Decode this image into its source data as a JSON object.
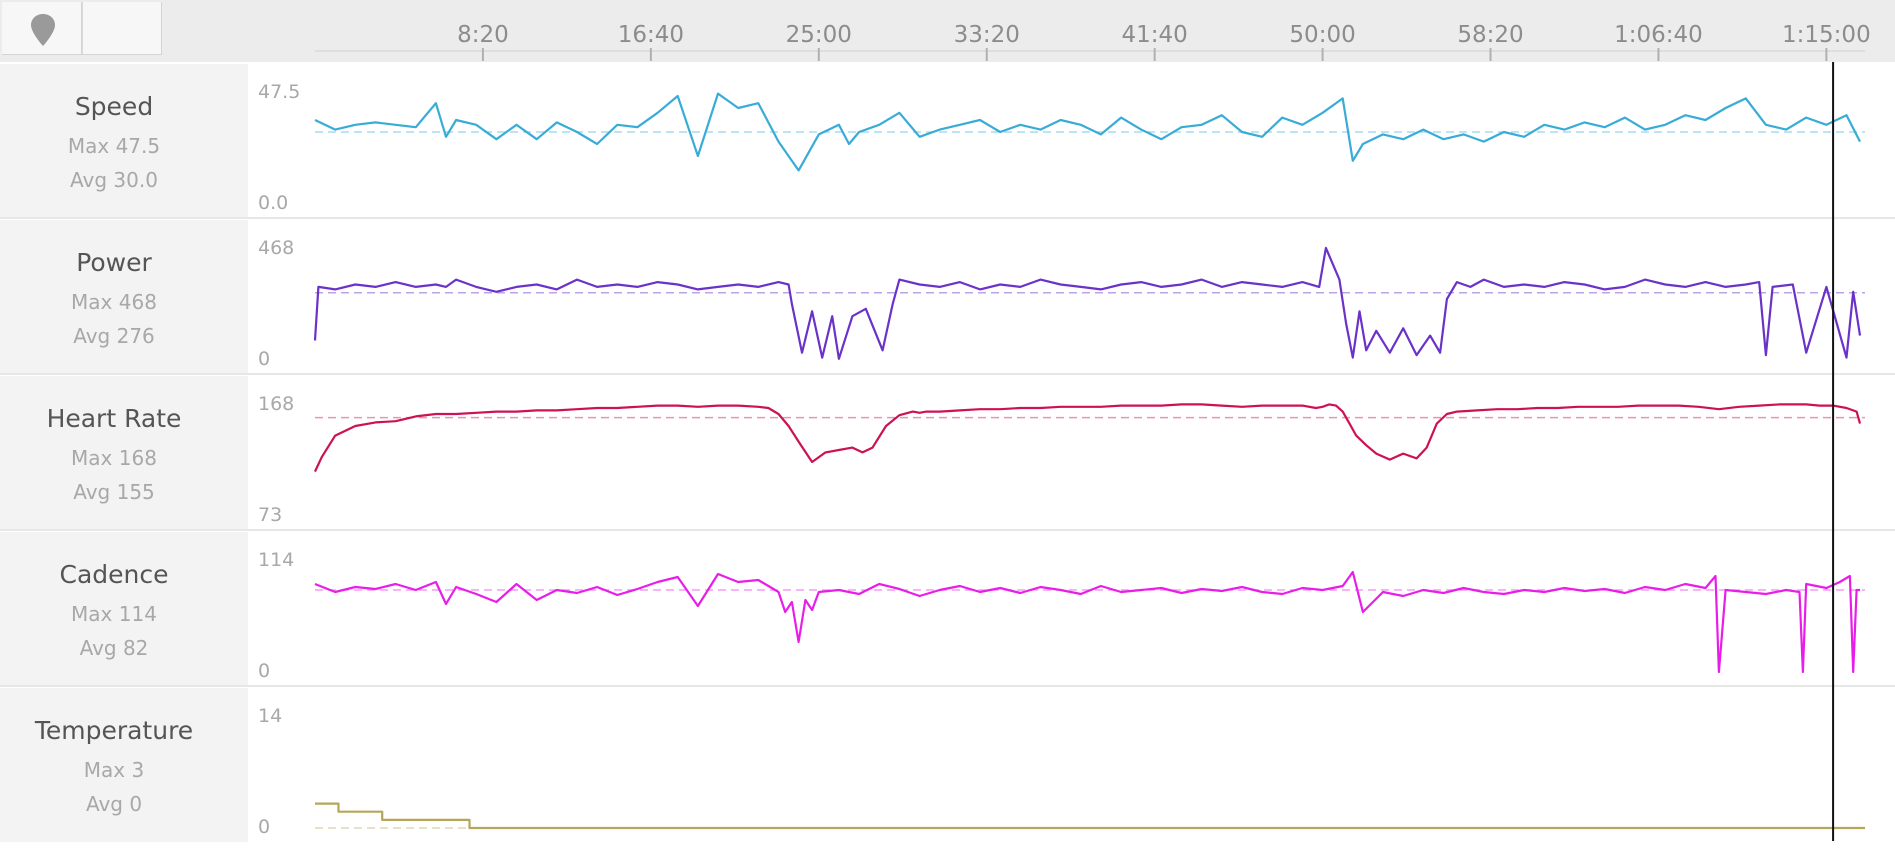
{
  "toolbar": {
    "pin_icon": "map-pin-icon"
  },
  "time_axis": {
    "ticks": [
      "8:20",
      "16:40",
      "25:00",
      "33:20",
      "41:40",
      "50:00",
      "58:20",
      "1:06:40",
      "1:15:00"
    ],
    "tick_seconds": [
      500,
      1000,
      1500,
      2000,
      2500,
      3000,
      3500,
      4000,
      4500
    ],
    "start_seconds": 0,
    "end_seconds": 4615,
    "cursor_seconds": 4520
  },
  "panels": [
    {
      "name": "Speed",
      "max_label": "Max 47.5",
      "avg_label": "Avg 30.0"
    },
    {
      "name": "Power",
      "max_label": "Max 468",
      "avg_label": "Avg 276"
    },
    {
      "name": "Heart Rate",
      "max_label": "Max 168",
      "avg_label": "Avg 155"
    },
    {
      "name": "Cadence",
      "max_label": "Max 114",
      "avg_label": "Avg 82"
    },
    {
      "name": "Temperature",
      "max_label": "Max 3",
      "avg_label": "Avg 0"
    }
  ],
  "chart_data": [
    {
      "type": "line",
      "series": [
        {
          "name": "Speed",
          "color": "#38acd6",
          "avg": 30.0,
          "x": [
            0,
            60,
            120,
            180,
            240,
            300,
            360,
            390,
            420,
            480,
            540,
            600,
            660,
            720,
            780,
            840,
            900,
            960,
            1020,
            1080,
            1140,
            1200,
            1260,
            1320,
            1380,
            1440,
            1500,
            1560,
            1590,
            1620,
            1680,
            1740,
            1800,
            1860,
            1920,
            1980,
            2040,
            2100,
            2160,
            2220,
            2280,
            2340,
            2400,
            2460,
            2520,
            2580,
            2640,
            2700,
            2760,
            2820,
            2880,
            2940,
            3000,
            3060,
            3090,
            3120,
            3180,
            3240,
            3300,
            3360,
            3420,
            3480,
            3540,
            3600,
            3660,
            3720,
            3780,
            3840,
            3900,
            3960,
            4020,
            4080,
            4140,
            4200,
            4260,
            4320,
            4380,
            4440,
            4500,
            4560,
            4600
          ],
          "y": [
            35,
            31,
            33,
            34,
            33,
            32,
            42,
            28,
            35,
            33,
            27,
            33,
            27,
            34,
            30,
            25,
            33,
            32,
            38,
            45,
            20,
            46,
            40,
            42,
            26,
            14,
            29,
            33,
            25,
            30,
            33,
            38,
            28,
            31,
            33,
            35,
            30,
            33,
            31,
            35,
            33,
            29,
            36,
            31,
            27,
            32,
            33,
            37,
            30,
            28,
            36,
            33,
            38,
            44,
            18,
            25,
            29,
            27,
            31,
            27,
            29,
            26,
            30,
            28,
            33,
            31,
            34,
            32,
            36,
            31,
            33,
            37,
            35,
            40,
            44,
            33,
            31,
            36,
            33,
            37,
            26
          ]
        }
      ],
      "ylim": [
        0,
        47.5
      ],
      "ytick_labels": [
        "47.5",
        "0.0"
      ]
    },
    {
      "type": "line",
      "series": [
        {
          "name": "Power",
          "color": "#6a32c8",
          "avg": 276,
          "x": [
            0,
            10,
            60,
            120,
            180,
            240,
            300,
            360,
            390,
            420,
            480,
            540,
            600,
            660,
            720,
            780,
            840,
            900,
            960,
            1020,
            1080,
            1140,
            1200,
            1260,
            1320,
            1380,
            1410,
            1420,
            1450,
            1480,
            1510,
            1540,
            1560,
            1600,
            1640,
            1690,
            1720,
            1740,
            1800,
            1860,
            1920,
            1980,
            2040,
            2100,
            2160,
            2220,
            2280,
            2340,
            2400,
            2460,
            2520,
            2580,
            2640,
            2700,
            2760,
            2820,
            2880,
            2940,
            2990,
            3010,
            3050,
            3070,
            3090,
            3110,
            3130,
            3160,
            3200,
            3240,
            3280,
            3320,
            3350,
            3370,
            3400,
            3420,
            3440,
            3480,
            3540,
            3600,
            3660,
            3720,
            3780,
            3840,
            3900,
            3960,
            4020,
            4080,
            4140,
            4200,
            4260,
            4300,
            4320,
            4340,
            4400,
            4440,
            4500,
            4560,
            4580,
            4600
          ],
          "y": [
            80,
            300,
            290,
            310,
            300,
            320,
            300,
            310,
            300,
            330,
            300,
            280,
            300,
            310,
            290,
            330,
            300,
            310,
            300,
            320,
            310,
            290,
            300,
            310,
            300,
            320,
            310,
            230,
            30,
            200,
            10,
            180,
            5,
            180,
            210,
            40,
            230,
            330,
            310,
            300,
            320,
            290,
            310,
            300,
            330,
            310,
            300,
            290,
            310,
            320,
            300,
            310,
            330,
            300,
            320,
            310,
            300,
            320,
            300,
            460,
            330,
            150,
            10,
            200,
            40,
            120,
            30,
            130,
            20,
            100,
            30,
            250,
            320,
            310,
            300,
            330,
            300,
            310,
            300,
            320,
            310,
            290,
            300,
            330,
            310,
            300,
            320,
            300,
            310,
            320,
            20,
            300,
            310,
            30,
            300,
            10,
            280,
            100
          ]
        }
      ],
      "ylim": [
        0,
        468
      ],
      "ytick_labels": [
        "468",
        "0"
      ]
    },
    {
      "type": "line",
      "series": [
        {
          "name": "Heart Rate",
          "color": "#cc1155",
          "avg": 155,
          "x": [
            0,
            20,
            60,
            120,
            180,
            240,
            300,
            360,
            420,
            480,
            540,
            600,
            660,
            720,
            780,
            840,
            900,
            960,
            1020,
            1080,
            1140,
            1200,
            1260,
            1320,
            1350,
            1380,
            1410,
            1440,
            1480,
            1520,
            1560,
            1600,
            1630,
            1660,
            1700,
            1740,
            1780,
            1800,
            1820,
            1860,
            1920,
            1980,
            2040,
            2100,
            2160,
            2220,
            2280,
            2340,
            2400,
            2460,
            2520,
            2580,
            2640,
            2700,
            2760,
            2820,
            2880,
            2940,
            2980,
            3000,
            3020,
            3040,
            3060,
            3080,
            3100,
            3130,
            3160,
            3200,
            3240,
            3280,
            3310,
            3340,
            3370,
            3400,
            3460,
            3520,
            3580,
            3640,
            3700,
            3760,
            3820,
            3880,
            3940,
            4000,
            4060,
            4120,
            4180,
            4240,
            4300,
            4360,
            4400,
            4440,
            4480,
            4520,
            4560,
            4590,
            4600
          ],
          "y": [
            110,
            122,
            140,
            148,
            151,
            152,
            156,
            158,
            158,
            159,
            160,
            160,
            161,
            161,
            162,
            163,
            163,
            164,
            165,
            165,
            164,
            165,
            165,
            164,
            163,
            158,
            148,
            135,
            118,
            126,
            128,
            130,
            126,
            130,
            148,
            157,
            160,
            159,
            160,
            160,
            161,
            162,
            162,
            163,
            163,
            164,
            164,
            164,
            165,
            165,
            165,
            166,
            166,
            165,
            164,
            165,
            165,
            165,
            163,
            164,
            166,
            165,
            160,
            150,
            140,
            132,
            125,
            120,
            125,
            121,
            130,
            150,
            158,
            160,
            161,
            162,
            162,
            163,
            163,
            164,
            164,
            164,
            165,
            165,
            165,
            164,
            162,
            164,
            165,
            166,
            166,
            166,
            165,
            165,
            163,
            160,
            150
          ]
        }
      ],
      "ylim": [
        73,
        168
      ],
      "ytick_labels": [
        "168",
        "73"
      ]
    },
    {
      "type": "line",
      "series": [
        {
          "name": "Cadence",
          "color": "#e81ee8",
          "avg": 82,
          "x": [
            0,
            60,
            120,
            180,
            240,
            300,
            360,
            390,
            420,
            480,
            540,
            600,
            660,
            720,
            780,
            840,
            900,
            960,
            1020,
            1080,
            1140,
            1200,
            1260,
            1320,
            1380,
            1400,
            1420,
            1440,
            1460,
            1480,
            1500,
            1560,
            1620,
            1680,
            1740,
            1800,
            1860,
            1920,
            1980,
            2040,
            2100,
            2160,
            2220,
            2280,
            2340,
            2400,
            2460,
            2520,
            2580,
            2640,
            2700,
            2760,
            2820,
            2880,
            2940,
            3000,
            3060,
            3090,
            3120,
            3180,
            3240,
            3300,
            3360,
            3420,
            3480,
            3540,
            3600,
            3660,
            3720,
            3780,
            3840,
            3900,
            3960,
            4020,
            4080,
            4140,
            4170,
            4180,
            4200,
            4260,
            4320,
            4380,
            4420,
            4430,
            4440,
            4500,
            4540,
            4570,
            4580,
            4590,
            4600
          ],
          "y": [
            88,
            80,
            85,
            83,
            88,
            82,
            90,
            68,
            85,
            78,
            70,
            88,
            72,
            82,
            79,
            85,
            77,
            83,
            90,
            95,
            66,
            98,
            90,
            92,
            80,
            60,
            70,
            30,
            72,
            62,
            80,
            82,
            78,
            88,
            83,
            76,
            82,
            86,
            80,
            84,
            79,
            85,
            82,
            78,
            86,
            80,
            82,
            84,
            79,
            83,
            81,
            85,
            80,
            78,
            84,
            82,
            86,
            100,
            60,
            80,
            76,
            82,
            79,
            84,
            80,
            78,
            82,
            80,
            84,
            81,
            83,
            79,
            85,
            82,
            88,
            84,
            96,
            0,
            82,
            80,
            78,
            82,
            80,
            0,
            88,
            84,
            90,
            96,
            0,
            82,
            82
          ]
        }
      ],
      "ylim": [
        0,
        114
      ],
      "ytick_labels": [
        "114",
        "0"
      ]
    },
    {
      "type": "line",
      "series": [
        {
          "name": "Temperature",
          "color": "#b5a65a",
          "avg": 0,
          "x": [
            0,
            70,
            70,
            200,
            200,
            460,
            460,
            4615
          ],
          "y": [
            3,
            3,
            2,
            2,
            1,
            1,
            0,
            0
          ]
        }
      ],
      "ylim": [
        0,
        14
      ],
      "ytick_labels": [
        "14",
        "0"
      ]
    }
  ]
}
